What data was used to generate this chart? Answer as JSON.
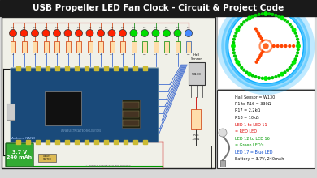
{
  "title": "USB Propeller LED Fan Clock - Circuit & Project Code",
  "title_bg": "#1a1a1a",
  "title_color": "#ffffff",
  "bg_color": "#d8d8d8",
  "circuit_bg": "#e8e8e0",
  "circuit_border": "#222222",
  "arduino_color": "#1a4a7a",
  "battery_label": "3.7 V\n240 mAh",
  "num_leds": 17,
  "wire_blue": "#2255cc",
  "wire_red": "#cc0000",
  "wire_green": "#009900",
  "wire_black": "#111111",
  "info_lines": [
    [
      "Hall Sensor = W130",
      "#111111"
    ],
    [
      "R1 to R16 = 330Ω",
      "#111111"
    ],
    [
      "R17 = 2.2kΩ",
      "#111111"
    ],
    [
      "R18 = 10kΩ",
      "#111111"
    ],
    [
      "LED 1 to LED 11",
      "#dd0000"
    ],
    [
      "= RED LED",
      "#dd0000"
    ],
    [
      "LED 12 to LED 16",
      "#009900"
    ],
    [
      "= Green LED's",
      "#009900"
    ],
    [
      "LED 17 = Blue LED",
      "#0044cc"
    ],
    [
      "Battery = 3.7V, 240mAh",
      "#111111"
    ]
  ],
  "website": "© WWW.ELECTICALTECHNOLOGY.ORG"
}
